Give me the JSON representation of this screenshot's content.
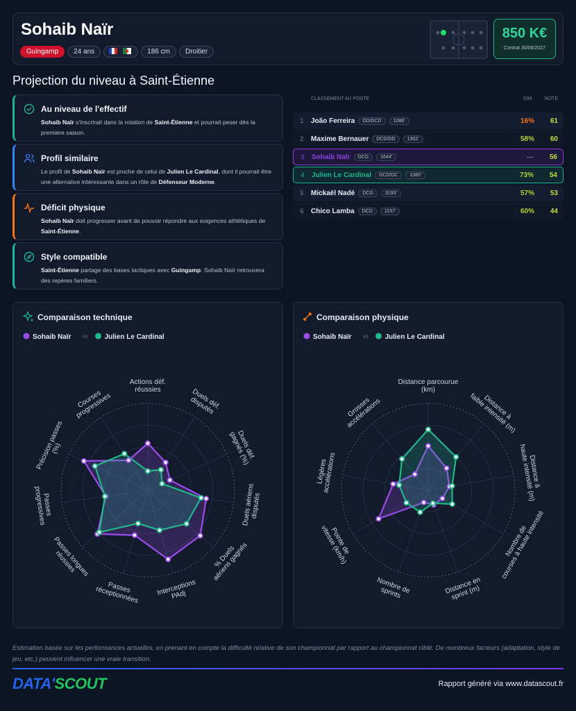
{
  "header": {
    "name": "Sohaib Naïr",
    "club": "Guingamp",
    "age": "24 ans",
    "height": "186 cm",
    "foot": "Droitier",
    "value": "850 K€",
    "contract": "Contrat 30/06/2027"
  },
  "section_title": "Projection du niveau à Saint-Étienne",
  "insights": [
    {
      "title": "Au niveau de l'effectif",
      "color": "#1fb58a",
      "body": [
        {
          "text": "Sohaib Naïr",
          "strong": true
        },
        {
          "text": " s'inscrirait dans la rotation de "
        },
        {
          "text": "Saint-Étienne",
          "strong": true
        },
        {
          "text": " et pourrait peser dès la première saison."
        }
      ]
    },
    {
      "title": "Profil similaire",
      "color": "#3b82f6",
      "body": [
        {
          "text": "Le profil de "
        },
        {
          "text": "Sohaib Naïr",
          "strong": true
        },
        {
          "text": " est proche de celui de "
        },
        {
          "text": "Julien Le Cardinal",
          "strong": true
        },
        {
          "text": ", dont il pourrait être une alternative intéressante dans un rôle de "
        },
        {
          "text": "Défenseur Moderne",
          "strong": true
        },
        {
          "text": "."
        }
      ]
    },
    {
      "title": "Déficit physique",
      "color": "#f97316",
      "body": [
        {
          "text": "Sohaib Naïr",
          "strong": true
        },
        {
          "text": " doit progresser avant de pouvoir répondre aux exigences athlétiques de "
        },
        {
          "text": "Saint-Étienne",
          "strong": true
        },
        {
          "text": "."
        }
      ]
    },
    {
      "title": "Style compatible",
      "color": "#14b8a6",
      "body": [
        {
          "text": "Saint-Étienne",
          "strong": true
        },
        {
          "text": " partage des bases tactiques avec "
        },
        {
          "text": "Guingamp",
          "strong": true
        },
        {
          "text": ". Sohaib Naïr retrouvera des repères familiers."
        }
      ]
    }
  ],
  "ranking": {
    "headers": [
      "CLASSEMENT AU POSTE",
      "SIM.",
      "NOTE"
    ],
    "rows": [
      {
        "rank": 1,
        "name": "João Ferreira",
        "position": "DD/DCD",
        "minutes": "1088'",
        "sim": "16%",
        "sim_color": "#f97316",
        "note": 61
      },
      {
        "rank": 2,
        "name": "Maxime Bernauer",
        "position": "DCD/DD",
        "minutes": "1302'",
        "sim": "58%",
        "sim_color": "#b5d334",
        "note": 60
      },
      {
        "rank": 3,
        "name": "Sohaib Naïr",
        "position": "DCG",
        "minutes": "1644'",
        "sim": "—",
        "sim_color": "#6b7280",
        "note": 56,
        "highlight": "#8b3fe0"
      },
      {
        "rank": 4,
        "name": "Julien Le Cardinal",
        "position": "DCD/DC",
        "minutes": "1080'",
        "sim": "73%",
        "sim_color": "#b5d334",
        "note": 54,
        "highlight": "#1fb58a"
      },
      {
        "rank": 5,
        "name": "Mickaël Nadé",
        "position": "DCG",
        "minutes": "3193'",
        "sim": "57%",
        "sim_color": "#b5d334",
        "note": 53
      },
      {
        "rank": 6,
        "name": "Chico Lamba",
        "position": "DCD",
        "minutes": "1157'",
        "sim": "60%",
        "sim_color": "#b5d334",
        "note": 44
      }
    ]
  },
  "charts": [
    {
      "type": "radar",
      "title": "Comparaison technique",
      "separator": "vs",
      "rlim": [
        0,
        100
      ],
      "axes": [
        [
          "Actions déf.",
          "réussies"
        ],
        [
          "Duels déf.",
          "disputés"
        ],
        [
          "Duels déf.",
          "gagnés (%)"
        ],
        [
          "Duels aériens",
          "disputés"
        ],
        [
          "% Duels",
          "aériens gagnés"
        ],
        [
          "Interceptions",
          "PAdj"
        ],
        [
          "Passes",
          "réceptionnées"
        ],
        [
          "Passes longues",
          "réussies"
        ],
        [
          "Passes",
          "progressives"
        ],
        [
          "Précision passes",
          "(%)"
        ],
        [
          "Courses",
          "progressives"
        ]
      ],
      "series": [
        {
          "name": "Sohaib Naïr",
          "color": "#9b4dea",
          "values": [
            54,
            38,
            28,
            68,
            80,
            83,
            54,
            77,
            49,
            81,
            41
          ]
        },
        {
          "name": "Julien Le Cardinal",
          "color": "#22b888",
          "values": [
            22,
            28,
            18,
            62,
            59,
            48,
            40,
            74,
            50,
            67,
            50
          ]
        }
      ]
    },
    {
      "type": "radar",
      "title": "Comparaison physique",
      "separator": "vs",
      "rlim": [
        0,
        100
      ],
      "axes": [
        [
          "Distance parcourue",
          "(km)"
        ],
        [
          "Distance à",
          "faible intensité (m)"
        ],
        [
          "Distance à",
          "haute intensité (m)"
        ],
        [
          "Nombre de",
          "courses à haute intensité"
        ],
        [
          "Distance en",
          "sprint (m)"
        ],
        [
          "Nombre de",
          "sprints"
        ],
        [
          "Pointe de",
          "vitesse (km/h)"
        ],
        [
          "Légères",
          "accélérations"
        ],
        [
          "Grosses",
          "accélérations"
        ]
      ],
      "series": [
        {
          "name": "Sohaib Naïr",
          "color": "#9b4dea",
          "values": [
            51,
            33,
            25,
            19,
            18,
            15,
            66,
            41,
            24
          ]
        },
        {
          "name": "Julien Le Cardinal",
          "color": "#22b888",
          "values": [
            70,
            50,
            28,
            32,
            16,
            27,
            29,
            34,
            47
          ]
        }
      ]
    }
  ],
  "footer": {
    "note": "Estimation basée sur les performances actuelles, en prenant en compte la difficulté relative de son championnat par rapport au championnat ciblé. De nombreux facteurs (adaptation, style de jeu, etc.) peuvent influencer une vraie transition.",
    "logo_left": "DATA'",
    "logo_right": "SCOUT",
    "report": "Rapport généré via www.datascout.fr"
  }
}
